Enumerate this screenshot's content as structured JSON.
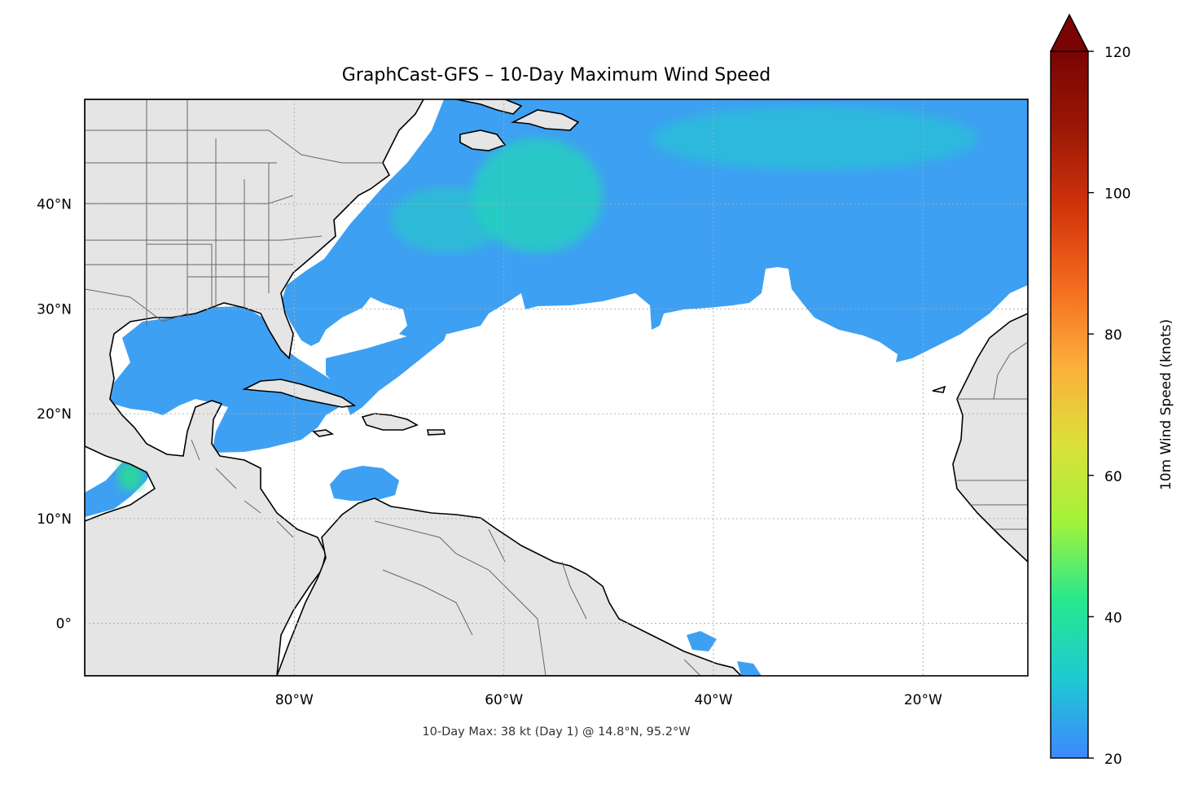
{
  "title": "GraphCast-GFS – 10-Day Maximum Wind Speed",
  "caption": "10-Day Max: 38 kt (Day 1) @ 14.8°N, 95.2°W",
  "map": {
    "lon_range": [
      -100,
      -10
    ],
    "lat_range": [
      -5,
      50
    ],
    "x_ticks": [
      {
        "lon": -80,
        "label": "80°W"
      },
      {
        "lon": -60,
        "label": "60°W"
      },
      {
        "lon": -40,
        "label": "40°W"
      },
      {
        "lon": -20,
        "label": "20°W"
      }
    ],
    "y_ticks": [
      {
        "lat": 40,
        "label": "40°N"
      },
      {
        "lat": 30,
        "label": "30°N"
      },
      {
        "lat": 20,
        "label": "20°N"
      },
      {
        "lat": 10,
        "label": "10°N"
      },
      {
        "lat": 0,
        "label": "0°"
      }
    ],
    "gridlines": "dotted",
    "land_color": "#e5e5e5",
    "ocean_color": "#ffffff"
  },
  "colorbar": {
    "label": "10m Wind Speed (knots)",
    "range": [
      20,
      120
    ],
    "ticks": [
      {
        "value": 20,
        "label": "20"
      },
      {
        "value": 40,
        "label": "40"
      },
      {
        "value": 60,
        "label": "60"
      },
      {
        "value": 80,
        "label": "80"
      },
      {
        "value": 100,
        "label": "100"
      },
      {
        "value": 120,
        "label": "120"
      }
    ],
    "extend": "max",
    "colors": [
      "#3e87ff",
      "#1ec9d2",
      "#26e88f",
      "#a2f23a",
      "#dbe03a",
      "#fdae3a",
      "#f46b1f",
      "#d1350b",
      "#9c1806",
      "#7a0403"
    ]
  }
}
